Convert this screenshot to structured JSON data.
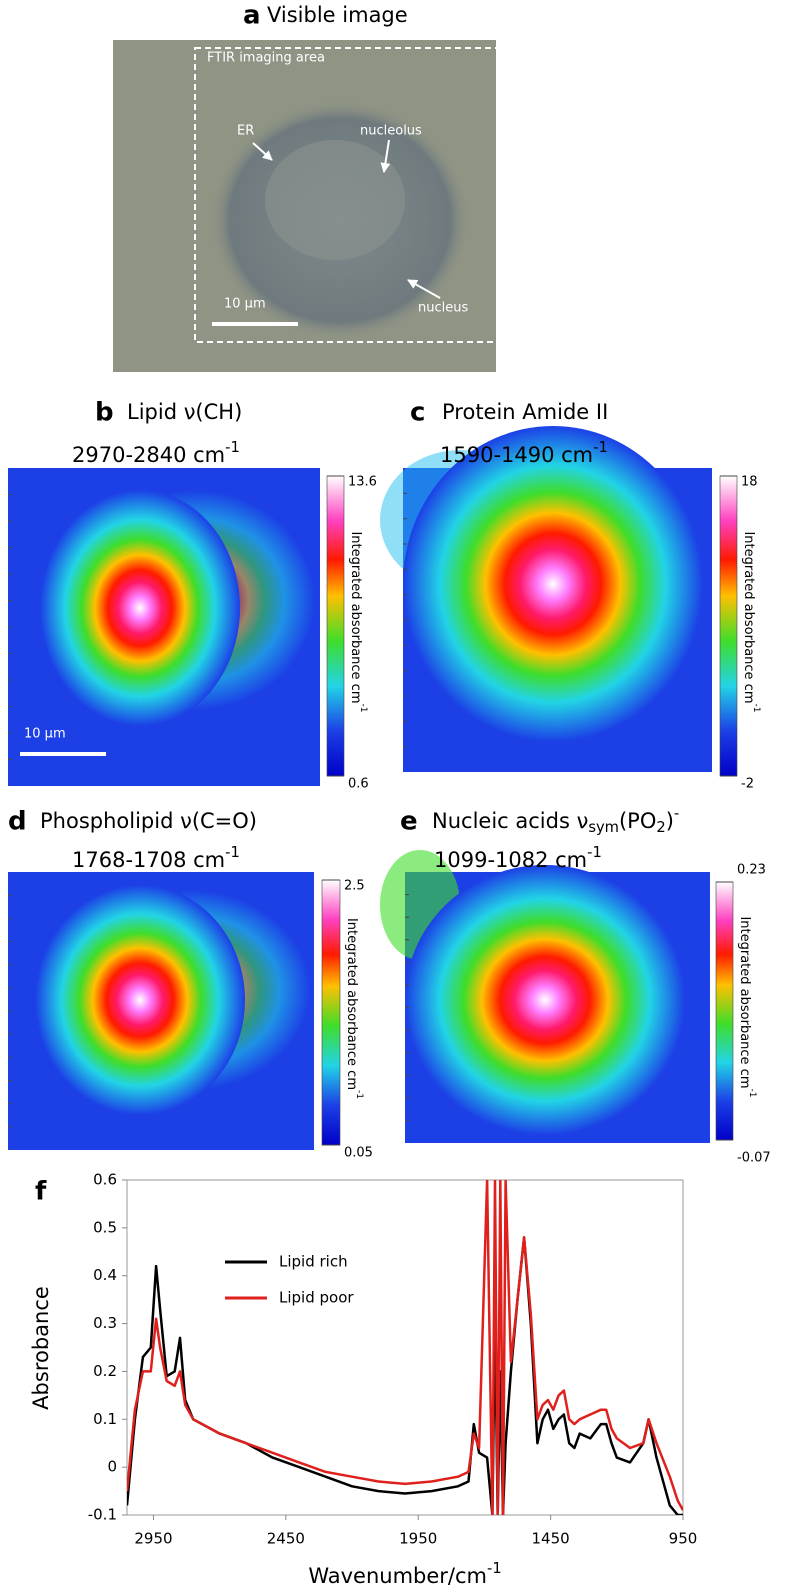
{
  "panel_a": {
    "letter": "a",
    "title": "Visible image",
    "box_label": "FTIR imaging area",
    "labels": [
      "ER",
      "nucleolus",
      "nucleus"
    ],
    "scale_bar": "10 μm"
  },
  "maps": [
    {
      "letter": "b",
      "title_parts": [
        "Lipid ν(CH)"
      ],
      "title_styles": [
        "normal"
      ],
      "subtitle": "2970-2840 cm",
      "subtitle_sup": "-1",
      "colorbar_label": "Integrated absorbance cm",
      "colorbar_sup": "-1",
      "cbar_ticks": [
        0.6,
        13.6
      ],
      "scale_bar": "10 μm"
    },
    {
      "letter": "c",
      "title_parts": [
        "Protein Amide II"
      ],
      "title_styles": [
        "normal"
      ],
      "subtitle": "1590-1490 cm",
      "subtitle_sup": "-1",
      "colorbar_label": "Integrated absorbance cm",
      "colorbar_sup": "-1",
      "cbar_ticks": [
        -2,
        18
      ]
    },
    {
      "letter": "d",
      "title_parts": [
        "Phospholipid ν(C=O)"
      ],
      "title_styles": [
        "normal"
      ],
      "subtitle": "1768-1708 cm",
      "subtitle_sup": "-1",
      "colorbar_label": "Integrated absorbance cm",
      "colorbar_sup": "-1",
      "cbar_ticks": [
        0.05,
        2.5
      ]
    },
    {
      "letter": "e",
      "title_parts": [
        "Nucleic acids ν",
        "sym",
        "(PO",
        "2",
        ")",
        "-"
      ],
      "title_styles": [
        "normal",
        "sub",
        "normal",
        "sub",
        "normal",
        "sup"
      ],
      "subtitle": "1099-1082 cm",
      "subtitle_sup": "-1",
      "colorbar_label": "Integrated absorbance cm",
      "colorbar_sup": "-1",
      "cbar_ticks": [
        -0.07,
        0.23
      ]
    }
  ],
  "chart_data": {
    "type": "line",
    "letter": "f",
    "xlabel": "Wavenumber/cm",
    "xlabel_sup": "-1",
    "ylabel": "Absrobance",
    "x": [
      3050,
      3020,
      2990,
      2960,
      2940,
      2925,
      2900,
      2870,
      2850,
      2830,
      2800,
      2700,
      2600,
      2500,
      2400,
      2300,
      2200,
      2100,
      2000,
      1900,
      1800,
      1760,
      1740,
      1720,
      1690,
      1670,
      1660,
      1650,
      1640,
      1630,
      1620,
      1600,
      1575,
      1550,
      1525,
      1500,
      1480,
      1460,
      1440,
      1420,
      1400,
      1380,
      1360,
      1340,
      1300,
      1260,
      1240,
      1220,
      1200,
      1150,
      1100,
      1080,
      1050,
      1000,
      970,
      950
    ],
    "series": [
      {
        "name": "Lipid rich",
        "color": "#000000",
        "values": [
          -0.08,
          0.1,
          0.23,
          0.25,
          0.42,
          0.33,
          0.19,
          0.2,
          0.27,
          0.14,
          0.1,
          0.07,
          0.05,
          0.02,
          0.0,
          -0.02,
          -0.04,
          -0.05,
          -0.055,
          -0.05,
          -0.04,
          -0.03,
          0.09,
          0.03,
          0.02,
          -0.1,
          0.3,
          -0.1,
          0.2,
          -0.1,
          0.05,
          0.2,
          0.35,
          0.48,
          0.3,
          0.05,
          0.1,
          0.12,
          0.08,
          0.1,
          0.11,
          0.05,
          0.04,
          0.07,
          0.06,
          0.09,
          0.09,
          0.05,
          0.02,
          0.01,
          0.05,
          0.1,
          0.02,
          -0.08,
          -0.1,
          -0.1
        ]
      },
      {
        "name": "Lipid poor",
        "color": "#e0201c",
        "values": [
          -0.05,
          0.12,
          0.2,
          0.2,
          0.31,
          0.25,
          0.18,
          0.17,
          0.2,
          0.13,
          0.1,
          0.07,
          0.05,
          0.03,
          0.01,
          -0.01,
          -0.02,
          -0.03,
          -0.035,
          -0.03,
          -0.02,
          -0.01,
          0.07,
          0.04,
          0.6,
          -0.1,
          0.6,
          -0.1,
          0.6,
          -0.1,
          0.6,
          0.22,
          0.35,
          0.48,
          0.32,
          0.1,
          0.13,
          0.14,
          0.12,
          0.15,
          0.16,
          0.1,
          0.09,
          0.1,
          0.11,
          0.12,
          0.12,
          0.08,
          0.06,
          0.04,
          0.05,
          0.1,
          0.05,
          -0.02,
          -0.07,
          -0.09
        ]
      }
    ],
    "xlim": [
      3050,
      950
    ],
    "ylim": [
      -0.1,
      0.6
    ],
    "xticks": [
      2950,
      2450,
      1950,
      1450,
      950
    ],
    "yticks": [
      -0.1,
      0,
      0.1,
      0.2,
      0.3,
      0.4,
      0.5,
      0.6
    ],
    "legend": "upper left"
  }
}
